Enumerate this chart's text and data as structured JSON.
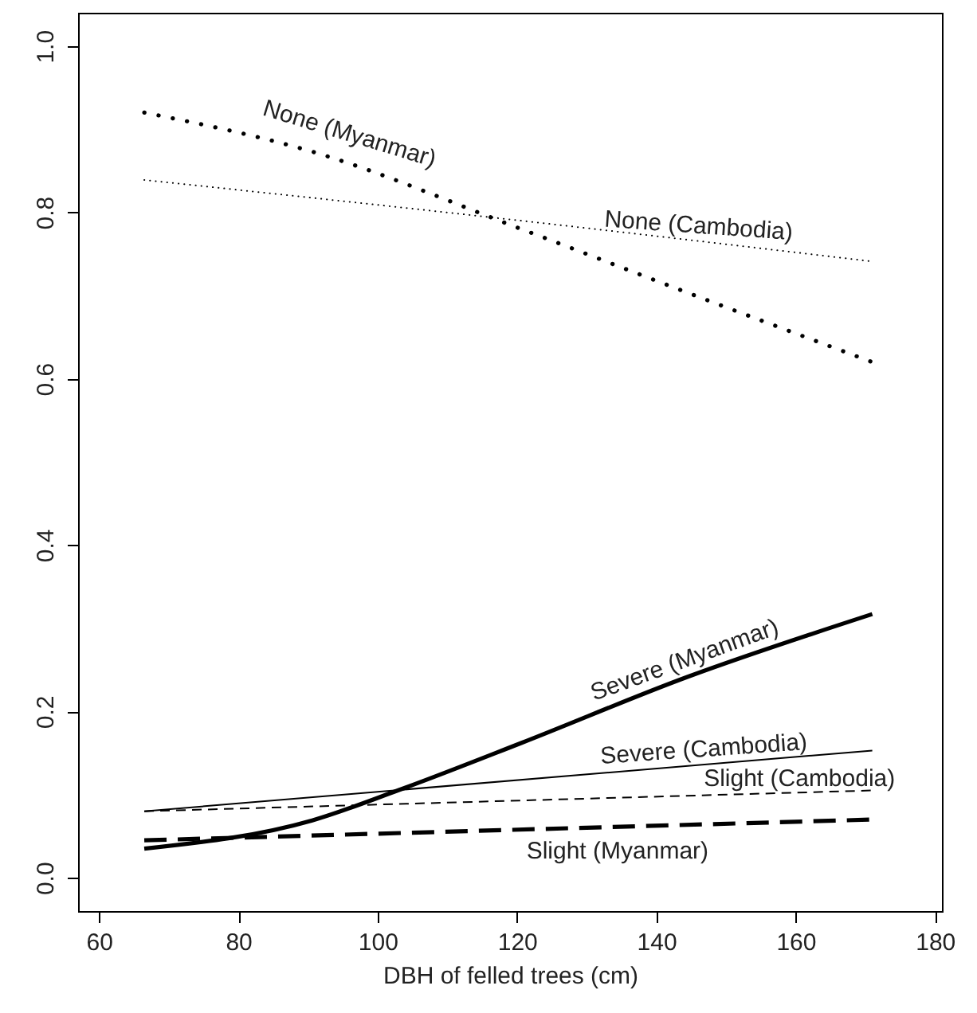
{
  "chart_data": {
    "type": "line",
    "xlabel": "DBH of felled trees (cm)",
    "xlim": [
      57,
      181
    ],
    "xticks": [
      60,
      80,
      100,
      120,
      140,
      160,
      180
    ],
    "ylim": [
      -0.04,
      1.04
    ],
    "yticks": [
      {
        "value": 0,
        "label": "0.0"
      },
      0.2,
      0.4,
      0.6,
      0.8,
      {
        "value": 1,
        "label": "1.0"
      }
    ],
    "grid": false,
    "marker": "none",
    "series": [
      {
        "name": "None (Myanmar)",
        "color": "#000000",
        "line_style": "dotted",
        "x": [
          66.5,
          90.6,
          120.6,
          144.3,
          171
        ],
        "values": [
          0.92,
          0.873,
          0.78,
          0.704,
          0.62
        ]
      },
      {
        "name": "None (Cambodia)",
        "color": "#000000",
        "line_style": "dotted",
        "x": [
          66.5,
          120.6,
          171
        ],
        "values": [
          0.839,
          0.79,
          0.741
        ]
      },
      {
        "name": "Severe (Myanmar)",
        "color": "#000000",
        "line_style": "solid",
        "x": [
          66.5,
          90.6,
          102.9,
          120.6,
          144.3,
          171
        ],
        "values": [
          0.035,
          0.069,
          0.105,
          0.162,
          0.241,
          0.317
        ]
      },
      {
        "name": "Severe (Cambodia)",
        "color": "#000000",
        "line_style": "solid",
        "x": [
          66.5,
          171
        ],
        "values": [
          0.08,
          0.153
        ]
      },
      {
        "name": "Slight (Cambodia)",
        "color": "#000000",
        "line_style": "dashed",
        "x": [
          66.5,
          171
        ],
        "values": [
          0.08,
          0.105
        ]
      },
      {
        "name": "Slight (Myanmar)",
        "color": "#000000",
        "line_style": "dashed",
        "x": [
          66.5,
          171
        ],
        "values": [
          0.045,
          0.07
        ]
      }
    ]
  }
}
